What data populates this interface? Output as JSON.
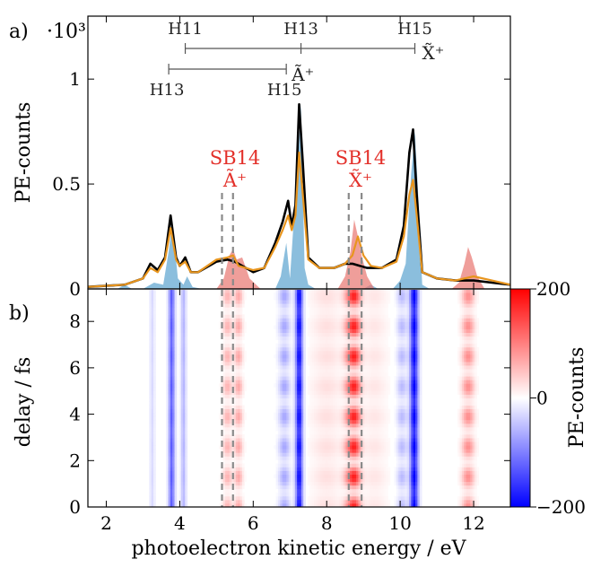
{
  "colors": {
    "black": "#000000",
    "orange": "#e8951e",
    "blue_fill": "#5aa2cf",
    "red_fill": "#e8756f",
    "red_text": "#e3302a",
    "cmap_neg": "#0000ff",
    "cmap_pos": "#ff0000",
    "dash": "#8a8a8a"
  },
  "panels": {
    "a_label": "a)",
    "b_label": "b)"
  },
  "axes": {
    "xlabel": "photoelectron kinetic energy / eV",
    "a_ylabel": "PE-counts",
    "a_scale": "·10³",
    "b_ylabel": "delay / fs",
    "cbar_label": "PE-counts"
  },
  "annotations": {
    "x_label": "X̃⁺",
    "a_label": "Ã⁺",
    "x_row": [
      "H11",
      "H13",
      "H15"
    ],
    "a_row": [
      "H13",
      "H15"
    ],
    "sb_left": "SB14",
    "sb_left_state": "Ã⁺",
    "sb_right": "SB14",
    "sb_right_state": "X̃⁺"
  },
  "chart_data": [
    {
      "type": "line",
      "panel": "a",
      "xlim": [
        1.5,
        13.0
      ],
      "ylim": [
        0,
        1.3
      ],
      "yscale_label": "·10³",
      "xticks": [
        "2",
        "4",
        "6",
        "8",
        "10",
        "12"
      ],
      "yticks": [
        "0",
        "0.5",
        "1"
      ],
      "ytick_values": [
        0,
        0.5,
        1
      ],
      "xtick_values": [
        2,
        4,
        6,
        8,
        10,
        12
      ],
      "series": [
        {
          "role": "black",
          "x": [
            1.5,
            2.5,
            3.0,
            3.2,
            3.4,
            3.6,
            3.75,
            3.9,
            4.0,
            4.15,
            4.3,
            4.5,
            5.0,
            5.3,
            5.5,
            5.7,
            6.0,
            6.3,
            6.6,
            6.8,
            6.95,
            7.05,
            7.15,
            7.25,
            7.35,
            7.5,
            7.8,
            8.2,
            8.5,
            8.7,
            8.9,
            9.1,
            9.5,
            9.9,
            10.1,
            10.25,
            10.35,
            10.45,
            10.6,
            11.0,
            11.5,
            12.0,
            12.5,
            13.0
          ],
          "y": [
            0.01,
            0.02,
            0.05,
            0.12,
            0.09,
            0.15,
            0.35,
            0.15,
            0.11,
            0.15,
            0.08,
            0.08,
            0.13,
            0.14,
            0.13,
            0.11,
            0.08,
            0.1,
            0.22,
            0.32,
            0.42,
            0.3,
            0.4,
            0.88,
            0.6,
            0.15,
            0.1,
            0.1,
            0.12,
            0.12,
            0.11,
            0.1,
            0.1,
            0.14,
            0.3,
            0.65,
            0.76,
            0.45,
            0.08,
            0.05,
            0.04,
            0.04,
            0.03,
            0.02
          ]
        },
        {
          "role": "orange",
          "x": [
            1.5,
            2.5,
            3.0,
            3.2,
            3.4,
            3.6,
            3.75,
            3.9,
            4.0,
            4.15,
            4.3,
            4.5,
            5.0,
            5.3,
            5.45,
            5.6,
            5.8,
            6.0,
            6.3,
            6.6,
            6.8,
            6.95,
            7.05,
            7.15,
            7.25,
            7.35,
            7.5,
            7.8,
            8.2,
            8.5,
            8.7,
            8.85,
            9.0,
            9.2,
            9.5,
            9.9,
            10.1,
            10.25,
            10.35,
            10.45,
            10.6,
            11.0,
            11.5,
            12.0,
            12.5,
            13.0
          ],
          "y": [
            0.01,
            0.02,
            0.05,
            0.1,
            0.08,
            0.14,
            0.29,
            0.14,
            0.11,
            0.13,
            0.08,
            0.08,
            0.14,
            0.15,
            0.16,
            0.11,
            0.1,
            0.09,
            0.1,
            0.2,
            0.28,
            0.35,
            0.28,
            0.35,
            0.65,
            0.45,
            0.14,
            0.1,
            0.1,
            0.12,
            0.16,
            0.25,
            0.16,
            0.11,
            0.1,
            0.13,
            0.25,
            0.45,
            0.52,
            0.35,
            0.08,
            0.05,
            0.04,
            0.06,
            0.04,
            0.02
          ]
        },
        {
          "role": "blue_fill",
          "x": [
            1.5,
            2.3,
            2.5,
            2.7,
            3.0,
            3.3,
            3.55,
            3.7,
            3.8,
            3.95,
            4.1,
            4.2,
            4.35,
            4.6,
            6.6,
            6.75,
            6.9,
            7.0,
            7.1,
            7.2,
            7.3,
            7.4,
            7.5,
            7.7,
            8.5,
            9.0,
            9.2,
            9.4,
            9.8,
            10.0,
            10.15,
            10.3,
            10.4,
            10.5,
            10.6,
            10.8,
            13.0
          ],
          "y": [
            0,
            0,
            0.02,
            0,
            0,
            0.03,
            0.02,
            0.18,
            0.32,
            0.05,
            0.02,
            0.06,
            0.01,
            0,
            0,
            0.06,
            0.22,
            0.05,
            0.32,
            0.55,
            0.88,
            0.1,
            0.02,
            0,
            0,
            0,
            0.02,
            0,
            0,
            0.04,
            0.12,
            0.55,
            0.75,
            0.42,
            0.02,
            0,
            0
          ]
        },
        {
          "role": "red_fill",
          "x": [
            1.5,
            5.0,
            5.2,
            5.35,
            5.45,
            5.55,
            5.7,
            5.9,
            6.2,
            8.3,
            8.5,
            8.65,
            8.75,
            8.85,
            8.95,
            9.1,
            9.3,
            11.4,
            11.6,
            11.75,
            11.85,
            11.95,
            12.1,
            12.3,
            13.0
          ],
          "y": [
            0,
            0,
            0.05,
            0.16,
            0.19,
            0.14,
            0.15,
            0.05,
            0,
            0,
            0.06,
            0.18,
            0.33,
            0.25,
            0.16,
            0.06,
            0,
            0,
            0.03,
            0.12,
            0.2,
            0.15,
            0.06,
            0,
            0
          ]
        }
      ]
    },
    {
      "type": "heatmap",
      "panel": "b",
      "xlim": [
        1.5,
        13.0
      ],
      "ylim": [
        0,
        9.4
      ],
      "yticks": [
        "0",
        "2",
        "4",
        "6",
        "8"
      ],
      "ytick_values": [
        0,
        2,
        4,
        6,
        8
      ],
      "xticks": [
        "2",
        "4",
        "6",
        "8",
        "10",
        "12"
      ],
      "xtick_values": [
        2,
        4,
        6,
        8,
        10,
        12
      ],
      "colorbar": {
        "range": [
          -200,
          200
        ],
        "ticks": [
          "200",
          "0",
          "−200"
        ],
        "tick_values": [
          200,
          0,
          -200
        ],
        "colormap": "blue-white-red"
      },
      "bands": [
        {
          "center": 3.25,
          "width": 0.05,
          "amp": -30,
          "osc": 0.1
        },
        {
          "center": 3.78,
          "width": 0.06,
          "amp": -130,
          "osc": 0.1
        },
        {
          "center": 4.1,
          "width": 0.05,
          "amp": -60,
          "osc": 0.1
        },
        {
          "center": 5.3,
          "width": 0.09,
          "amp": 60,
          "osc": 0.85
        },
        {
          "center": 5.6,
          "width": 0.08,
          "amp": 70,
          "osc": 0.85
        },
        {
          "center": 6.85,
          "width": 0.11,
          "amp": -70,
          "osc": 0.7
        },
        {
          "center": 7.25,
          "width": 0.07,
          "amp": -200,
          "osc": 0.2
        },
        {
          "center": 8.0,
          "width": 0.3,
          "amp": 25,
          "osc": 0.5
        },
        {
          "center": 8.55,
          "width": 0.1,
          "amp": 40,
          "osc": 0.9
        },
        {
          "center": 8.75,
          "width": 0.12,
          "amp": 170,
          "osc": 0.85
        },
        {
          "center": 9.3,
          "width": 0.25,
          "amp": 20,
          "osc": 0.5
        },
        {
          "center": 10.05,
          "width": 0.1,
          "amp": -55,
          "osc": 0.7
        },
        {
          "center": 10.38,
          "width": 0.08,
          "amp": -200,
          "osc": 0.2
        },
        {
          "center": 11.85,
          "width": 0.12,
          "amp": 90,
          "osc": 0.8
        }
      ],
      "period_fs": 1.3
    }
  ],
  "dashed_lines_eV": [
    5.15,
    5.45,
    8.6,
    8.95
  ],
  "harmonic_rows": {
    "x_state": {
      "x": [
        4.15,
        7.3,
        10.4
      ]
    },
    "a_state": {
      "x": [
        3.7,
        6.9
      ]
    }
  }
}
